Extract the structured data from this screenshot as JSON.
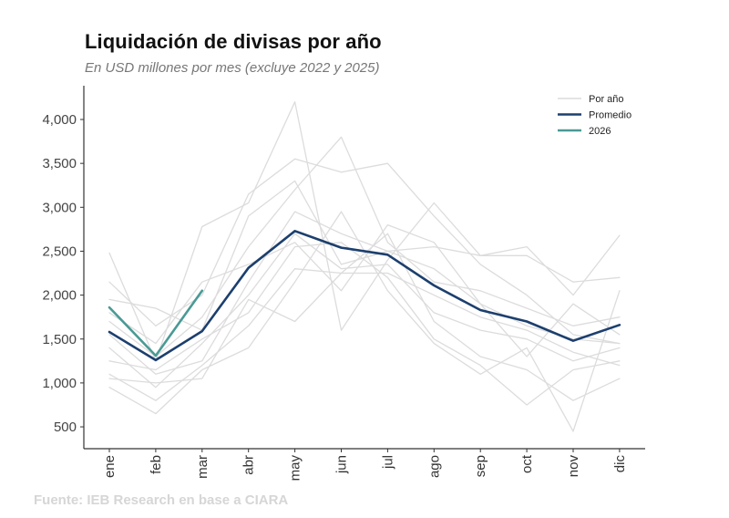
{
  "chart_data": {
    "type": "line",
    "title": "Liquidación de divisas por año",
    "subtitle": "En USD millones por mes (excluye 2022 y 2025)",
    "source": "Fuente: IEB Research en base a CIARA",
    "xlabel": "",
    "ylabel": "",
    "categories": [
      "ene",
      "feb",
      "mar",
      "abr",
      "may",
      "jun",
      "jul",
      "ago",
      "sep",
      "oct",
      "nov",
      "dic"
    ],
    "ylim": [
      250,
      4350
    ],
    "yticks": [
      500,
      1000,
      1500,
      2000,
      2500,
      3000,
      3500,
      4000
    ],
    "ytick_labels": [
      "500",
      "1,000",
      "1,500",
      "2,000",
      "2,500",
      "3,000",
      "3,500",
      "4,000"
    ],
    "grid": false,
    "legend": {
      "position": "top-right",
      "entries": [
        {
          "name": "Por año",
          "color": "#dcdcdc"
        },
        {
          "name": "Promedio",
          "color": "#1c3f6e"
        },
        {
          "name": "2026",
          "color": "#4a9a95"
        }
      ]
    },
    "series": [
      {
        "name": "Por año",
        "group": "years",
        "color": "#dcdcdc",
        "values": [
          2480,
          1250,
          2780,
          3050,
          4200,
          1600,
          2400,
          3050,
          2450,
          2550,
          2000,
          2680
        ]
      },
      {
        "name": "Por año",
        "group": "years",
        "color": "#dcdcdc",
        "values": [
          2150,
          1650,
          2000,
          3150,
          3550,
          3400,
          3500,
          2900,
          2350,
          2000,
          1550,
          1450
        ]
      },
      {
        "name": "Por año",
        "group": "years",
        "color": "#dcdcdc",
        "values": [
          1950,
          1850,
          1600,
          2900,
          3300,
          2350,
          2500,
          2550,
          2450,
          2450,
          2150,
          2200
        ]
      },
      {
        "name": "Por año",
        "group": "years",
        "color": "#dcdcdc",
        "values": [
          1700,
          1300,
          1750,
          2550,
          3200,
          3800,
          2600,
          2150,
          2050,
          1850,
          1650,
          1750
        ]
      },
      {
        "name": "Por año",
        "group": "years",
        "color": "#dcdcdc",
        "values": [
          1550,
          1100,
          1250,
          2150,
          2950,
          2700,
          2500,
          2300,
          1900,
          1650,
          1500,
          1450
        ]
      },
      {
        "name": "Por año",
        "group": "years",
        "color": "#dcdcdc",
        "values": [
          1400,
          950,
          1450,
          2000,
          2700,
          2300,
          2350,
          1800,
          1600,
          1500,
          1250,
          1400
        ]
      },
      {
        "name": "Por año",
        "group": "years",
        "color": "#dcdcdc",
        "values": [
          1250,
          1150,
          1500,
          1800,
          2550,
          2600,
          2200,
          1500,
          1200,
          750,
          1150,
          1250
        ]
      },
      {
        "name": "Por año",
        "group": "years",
        "color": "#dcdcdc",
        "values": [
          1100,
          800,
          1200,
          1650,
          2300,
          2250,
          2700,
          1700,
          1300,
          1150,
          800,
          1050
        ]
      },
      {
        "name": "Por año",
        "group": "years",
        "color": "#dcdcdc",
        "values": [
          950,
          650,
          1150,
          1400,
          2150,
          2950,
          2050,
          1450,
          1100,
          1400,
          450,
          2050
        ]
      },
      {
        "name": "Por año",
        "group": "years",
        "color": "#dcdcdc",
        "values": [
          1050,
          1000,
          1050,
          1950,
          1700,
          2250,
          2250,
          2000,
          1750,
          1600,
          1350,
          1200
        ]
      },
      {
        "name": "Por año",
        "group": "years",
        "color": "#dcdcdc",
        "values": [
          1800,
          1450,
          2150,
          2350,
          2600,
          2050,
          2800,
          2600,
          1900,
          1300,
          1900,
          1550
        ]
      },
      {
        "name": "Promedio",
        "group": "avg",
        "color": "#1c3f6e",
        "values": [
          1580,
          1260,
          1590,
          2310,
          2730,
          2540,
          2460,
          2110,
          1830,
          1700,
          1480,
          1660
        ]
      },
      {
        "name": "2026",
        "group": "current",
        "color": "#4a9a95",
        "values": [
          1860,
          1310,
          2050
        ]
      }
    ]
  }
}
